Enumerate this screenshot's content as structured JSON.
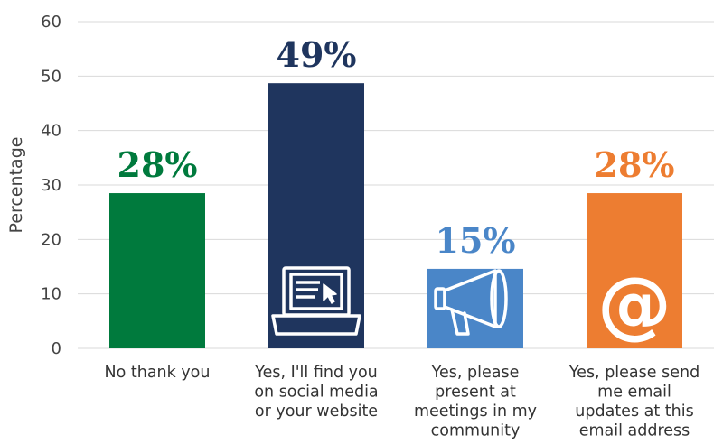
{
  "chart_data": {
    "type": "bar",
    "ylabel": "Percentage",
    "ylim": [
      0,
      60
    ],
    "yticks": [
      0,
      10,
      20,
      30,
      40,
      50,
      60
    ],
    "grid": true,
    "categories": [
      [
        "No thank you"
      ],
      [
        "Yes, I'll find you",
        "on social media",
        "or your website"
      ],
      [
        "Yes, please",
        "present at",
        "meetings in my",
        "community"
      ],
      [
        "Yes, please send",
        "me email",
        "updates at this",
        "email address"
      ]
    ],
    "values": [
      28.5,
      48.7,
      14.6,
      28.5
    ],
    "data_labels": [
      "28%",
      "49%",
      "15%",
      "28%"
    ],
    "colors": [
      "#007a3d",
      "#1f355e",
      "#4a86c8",
      "#ed7d31"
    ],
    "icons": [
      "",
      "laptop-icon",
      "megaphone-icon",
      "at-sign-icon"
    ]
  }
}
